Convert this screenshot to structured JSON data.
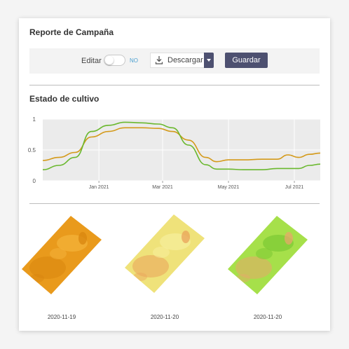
{
  "report": {
    "title": "Reporte de Campaña"
  },
  "toolbar": {
    "edit_label": "Editar",
    "toggle_state": "NO",
    "download_label": "Descargar",
    "download_icon": "download-icon",
    "save_label": "Guardar"
  },
  "crop_status": {
    "title": "Estado de cultivo"
  },
  "chart_data": {
    "type": "line",
    "title": "",
    "xlabel": "",
    "ylabel": "",
    "ylim": [
      0,
      1
    ],
    "yticks": [
      "0",
      "0.5",
      "1"
    ],
    "xticks": [
      "Jan 2021",
      "Mar 2021",
      "May 2021",
      "Jul 2021"
    ],
    "xlim": [
      "2020-11-10",
      "2021-07-25"
    ],
    "grid": true,
    "series": [
      {
        "color": "#d49a1a",
        "x": [
          "2020-11-10",
          "2020-11-25",
          "2020-12-10",
          "2020-12-25",
          "2021-01-10",
          "2021-01-25",
          "2021-02-10",
          "2021-02-25",
          "2021-03-10",
          "2021-03-25",
          "2021-04-10",
          "2021-04-20",
          "2021-05-01",
          "2021-05-15",
          "2021-06-01",
          "2021-06-15",
          "2021-06-25",
          "2021-07-05",
          "2021-07-15",
          "2021-07-25"
        ],
        "values": [
          0.33,
          0.38,
          0.46,
          0.71,
          0.8,
          0.86,
          0.86,
          0.85,
          0.8,
          0.66,
          0.38,
          0.31,
          0.34,
          0.34,
          0.35,
          0.35,
          0.42,
          0.38,
          0.43,
          0.45
        ]
      },
      {
        "color": "#6ab82e",
        "x": [
          "2020-11-10",
          "2020-11-25",
          "2020-12-10",
          "2020-12-25",
          "2021-01-10",
          "2021-01-25",
          "2021-02-10",
          "2021-02-25",
          "2021-03-10",
          "2021-03-25",
          "2021-04-10",
          "2021-04-20",
          "2021-05-01",
          "2021-05-15",
          "2021-06-01",
          "2021-06-15",
          "2021-06-25",
          "2021-07-05",
          "2021-07-15",
          "2021-07-25"
        ],
        "values": [
          0.18,
          0.25,
          0.38,
          0.8,
          0.9,
          0.95,
          0.94,
          0.92,
          0.86,
          0.58,
          0.26,
          0.19,
          0.19,
          0.18,
          0.18,
          0.2,
          0.2,
          0.2,
          0.25,
          0.27
        ]
      }
    ]
  },
  "thumbnails": [
    {
      "date": "2020-11-19",
      "base": "#e99a1c",
      "accent": "#f4b33a",
      "patch": "#d8860f"
    },
    {
      "date": "2020-11-20",
      "base": "#efe27a",
      "accent": "#f7ef9c",
      "patch": "#eaa35a"
    },
    {
      "date": "2020-11-20",
      "base": "#a6e04a",
      "accent": "#7cc933",
      "patch": "#e7a86a"
    }
  ],
  "colors": {
    "button": "#4d5070",
    "toggle_no": "#4a9fd0"
  }
}
